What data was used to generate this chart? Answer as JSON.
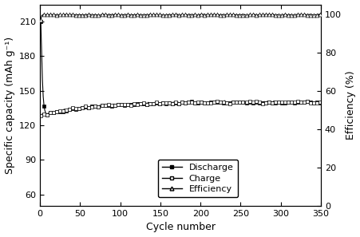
{
  "xlabel": "Cycle number",
  "ylabel_left": "Specific capacity (mAh g⁻¹)",
  "ylabel_right": "Efficiency (%)",
  "xlim": [
    0,
    350
  ],
  "ylim_left": [
    50,
    225
  ],
  "ylim_right": [
    0,
    105
  ],
  "yticks_left": [
    60,
    90,
    120,
    150,
    180,
    210
  ],
  "yticks_right": [
    0,
    20,
    40,
    60,
    80,
    100
  ],
  "xticks": [
    0,
    50,
    100,
    150,
    200,
    250,
    300,
    350
  ],
  "line_color": "#000000",
  "legend_labels": [
    "Discharge",
    "Charge",
    "Efficiency"
  ],
  "figsize": [
    4.52,
    2.97
  ],
  "dpi": 100
}
